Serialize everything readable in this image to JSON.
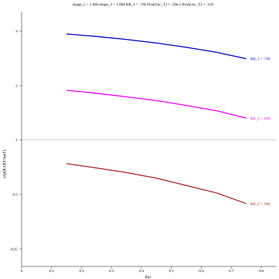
{
  "chart_data": {
    "type": "line",
    "title": "shape_1 = 1.000  shape_2 = 1.000  RR_1 = .700  ProbUnc_T1 = .50e-1  ProbUnc_T2 = .150",
    "xlabel": "rho",
    "ylabel": "exp(EAET/tauT)",
    "x_range": [
      0,
      0.85
    ],
    "x_ticks": [
      0,
      0.1,
      0.2,
      0.3,
      0.4,
      0.5,
      0.6,
      0.7,
      0.8
    ],
    "x_tick_labels": [
      "0",
      "0.1",
      "0.2",
      "0.3",
      "0.4",
      "0.5",
      "0.6",
      "0.7",
      "0.8"
    ],
    "y_scale": "log",
    "y_range": [
      0.2,
      5.1
    ],
    "y_ticks": [
      0.25,
      0.5,
      1,
      2,
      4
    ],
    "y_tick_labels": [
      "0.25",
      "0.5",
      "1",
      "2",
      "4"
    ],
    "reference_line_y": 1,
    "grid": false,
    "legend": "inline labels at right end of each curve",
    "series": [
      {
        "name": "RR_2 = .700",
        "color": "#0000cc",
        "x": [
          0.15,
          0.25,
          0.35,
          0.45,
          0.55,
          0.65,
          0.75
        ],
        "values": [
          3.85,
          3.73,
          3.59,
          3.43,
          3.25,
          3.05,
          2.81
        ]
      },
      {
        "name": "RR_2 = .800",
        "color": "#ee00ee",
        "x": [
          0.15,
          0.25,
          0.35,
          0.45,
          0.55,
          0.65,
          0.75
        ],
        "values": [
          1.88,
          1.81,
          1.73,
          1.65,
          1.55,
          1.45,
          1.32
        ]
      },
      {
        "name": "RR_2 = .900",
        "color": "#aa2222",
        "x": [
          0.15,
          0.25,
          0.35,
          0.45,
          0.55,
          0.65,
          0.75
        ],
        "values": [
          0.74,
          0.7,
          0.66,
          0.615,
          0.56,
          0.51,
          0.445
        ]
      }
    ]
  }
}
